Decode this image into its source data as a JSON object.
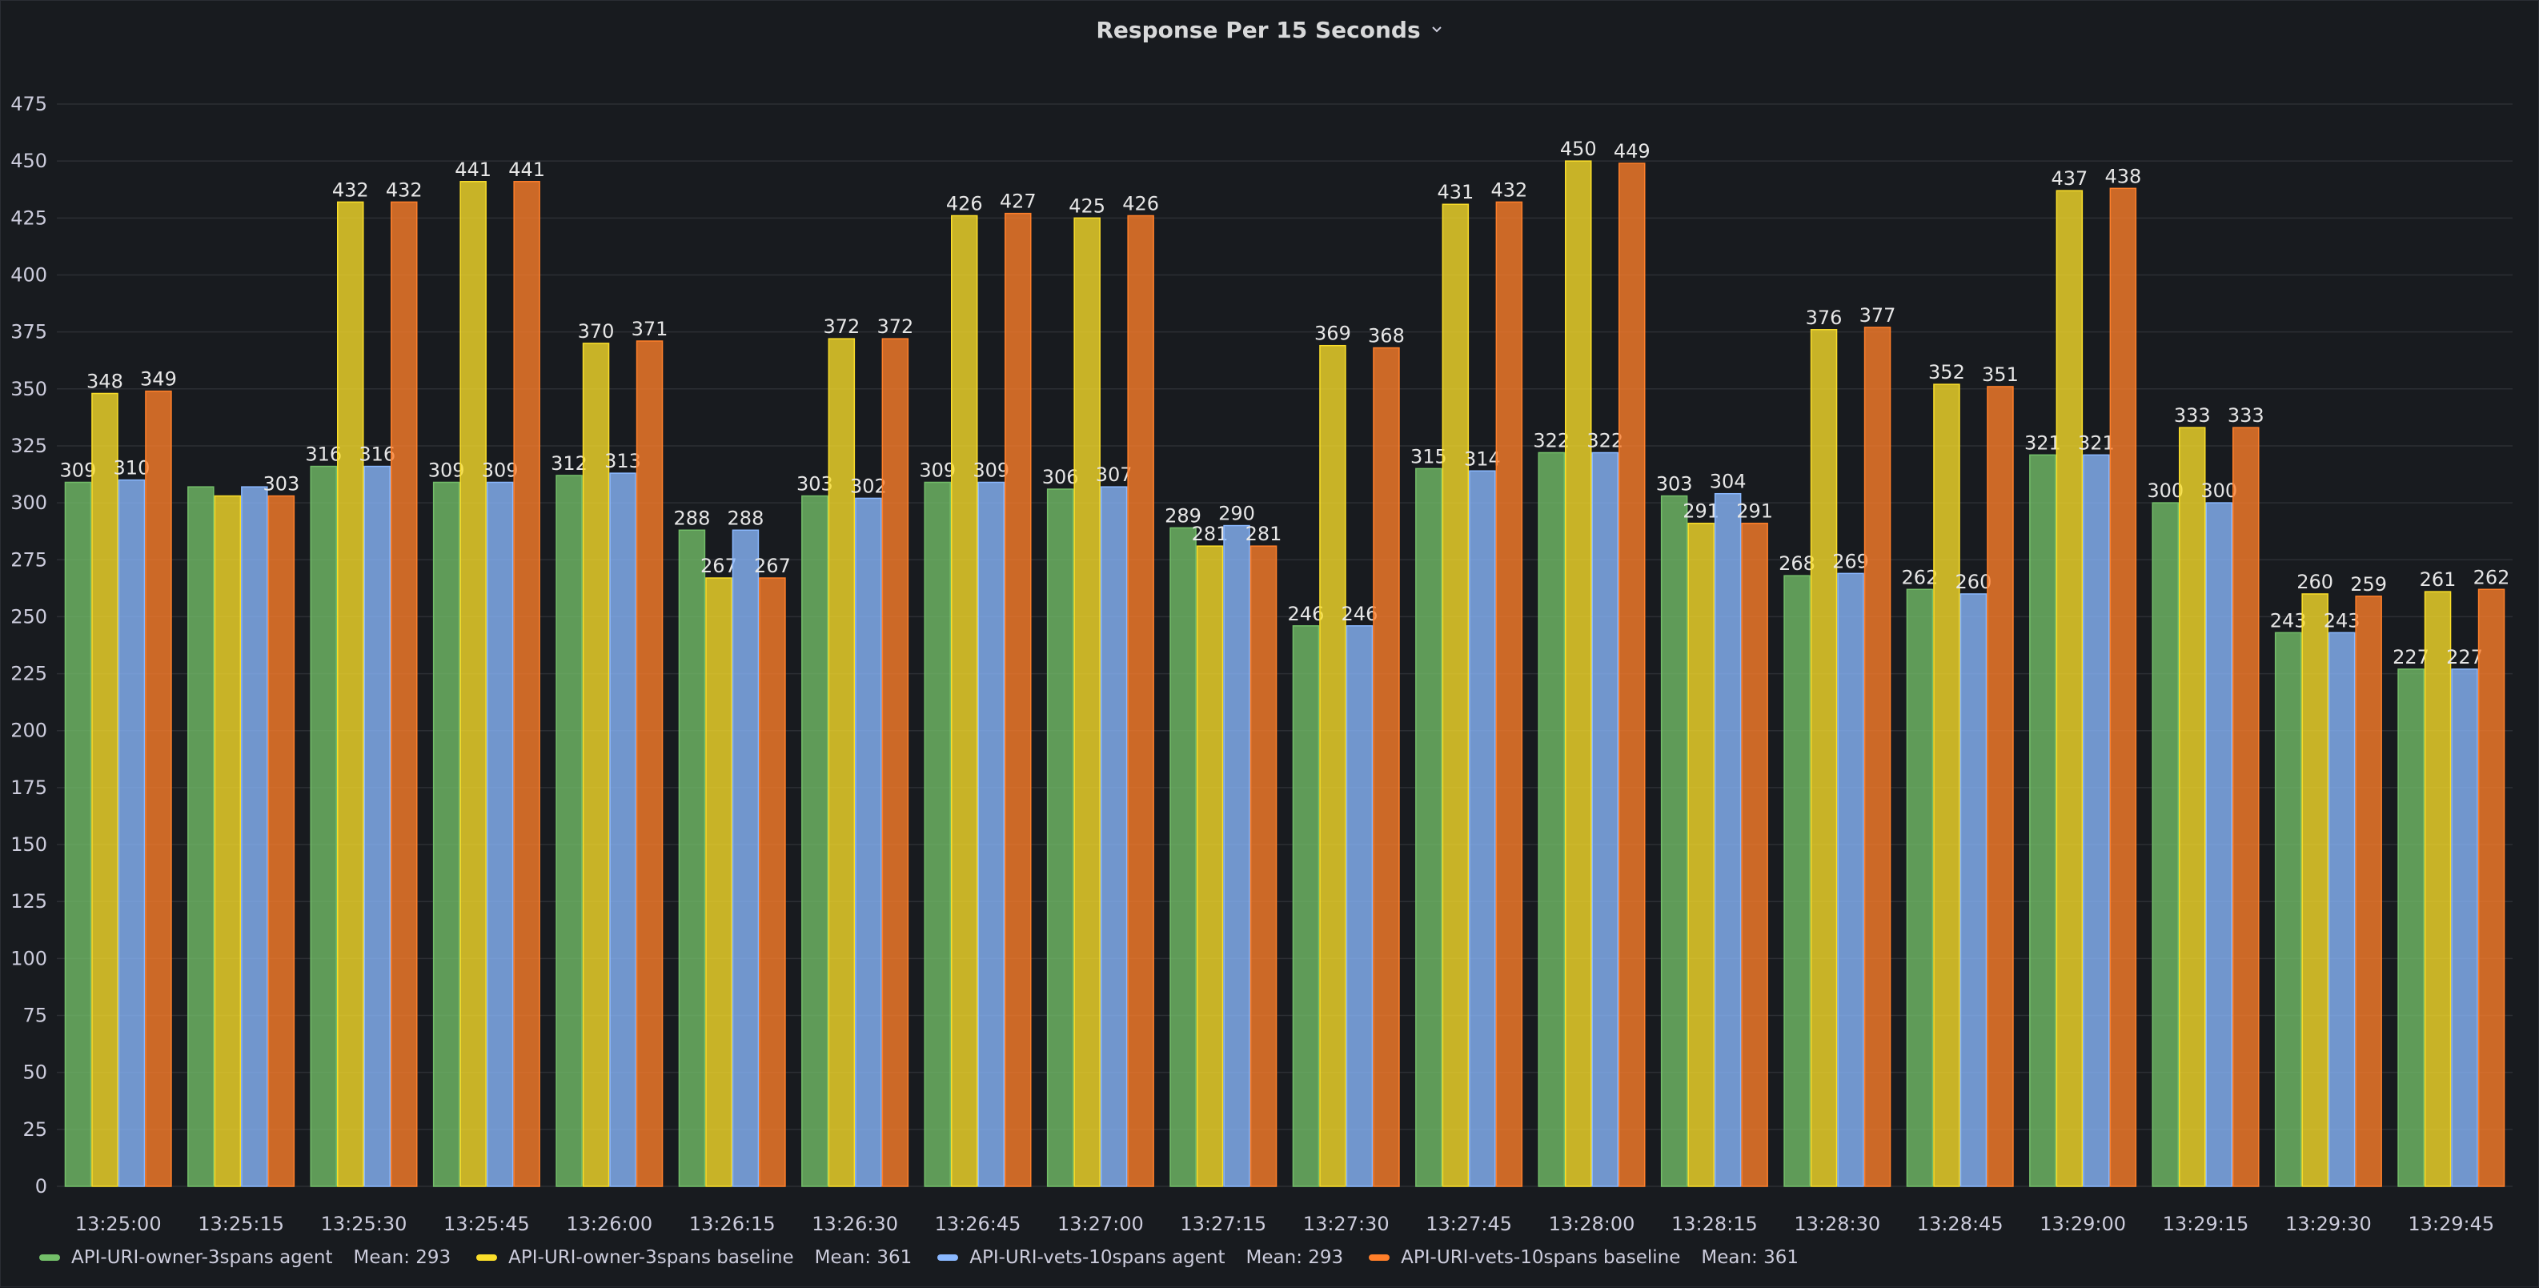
{
  "panel": {
    "title": "Response Per 15 Seconds"
  },
  "chart_data": {
    "type": "bar",
    "title": "Response Per 15 Seconds",
    "ylim": [
      0,
      475
    ],
    "yticks": [
      0,
      25,
      50,
      75,
      100,
      125,
      150,
      175,
      200,
      225,
      250,
      275,
      300,
      325,
      350,
      375,
      400,
      425,
      450,
      475
    ],
    "grid": true,
    "legend_position": "bottom-left",
    "categories": [
      "13:25:00",
      "13:25:15",
      "13:25:30",
      "13:25:45",
      "13:26:00",
      "13:26:15",
      "13:26:30",
      "13:26:45",
      "13:27:00",
      "13:27:15",
      "13:27:30",
      "13:27:45",
      "13:28:00",
      "13:28:15",
      "13:28:30",
      "13:28:45",
      "13:29:00",
      "13:29:15",
      "13:29:30",
      "13:29:45"
    ],
    "series": [
      {
        "name": "API-URI-owner-3spans agent",
        "color": "#73bf69",
        "values": [
          309,
          307,
          316,
          309,
          312,
          288,
          303,
          309,
          306,
          289,
          246,
          315,
          322,
          303,
          268,
          262,
          321,
          300,
          243,
          227
        ],
        "labels": [
          "309",
          null,
          "316",
          "309",
          "312",
          "288",
          "303",
          "309",
          "306",
          "289",
          "246",
          "315",
          "322",
          "303",
          "268",
          "262",
          "321",
          "300",
          "243",
          "227"
        ]
      },
      {
        "name": "API-URI-owner-3spans baseline",
        "color": "#fade2a",
        "values": [
          348,
          303,
          432,
          441,
          370,
          267,
          372,
          426,
          425,
          281,
          369,
          431,
          450,
          291,
          376,
          352,
          437,
          333,
          260,
          261
        ],
        "labels": [
          "348",
          null,
          "432",
          "441",
          "370",
          "267",
          "372",
          "426",
          "425",
          "281",
          "369",
          "431",
          "450",
          "291",
          "376",
          "352",
          "437",
          "333",
          "260",
          "261"
        ]
      },
      {
        "name": "API-URI-vets-10spans agent",
        "color": "#8ab8ff",
        "values": [
          310,
          307,
          316,
          309,
          313,
          288,
          302,
          309,
          307,
          290,
          246,
          314,
          322,
          304,
          269,
          260,
          321,
          300,
          243,
          227
        ],
        "labels": [
          "310",
          null,
          "316",
          "309",
          "313",
          "288",
          "302",
          "309",
          "307",
          "290",
          "246",
          "314",
          "322",
          "304",
          "269",
          "260",
          "321",
          "300",
          "243",
          "227"
        ]
      },
      {
        "name": "API-URI-vets-10spans baseline",
        "color": "#ff7f2a",
        "values": [
          349,
          303,
          432,
          441,
          371,
          267,
          372,
          427,
          426,
          281,
          368,
          432,
          449,
          291,
          377,
          351,
          438,
          333,
          259,
          262
        ],
        "labels": [
          "349",
          "303",
          "432",
          "441",
          "371",
          "267",
          "372",
          "427",
          "426",
          "281",
          "368",
          "432",
          "449",
          "291",
          "377",
          "351",
          "438",
          "333",
          "259",
          "262"
        ]
      }
    ]
  },
  "legend": [
    {
      "name": "API-URI-owner-3spans agent",
      "mean": "Mean: 293",
      "color": "#73bf69"
    },
    {
      "name": "API-URI-owner-3spans baseline",
      "mean": "Mean: 361",
      "color": "#fade2a"
    },
    {
      "name": "API-URI-vets-10spans agent",
      "mean": "Mean: 293",
      "color": "#8ab8ff"
    },
    {
      "name": "API-URI-vets-10spans baseline",
      "mean": "Mean: 361",
      "color": "#ff7f2a"
    }
  ]
}
